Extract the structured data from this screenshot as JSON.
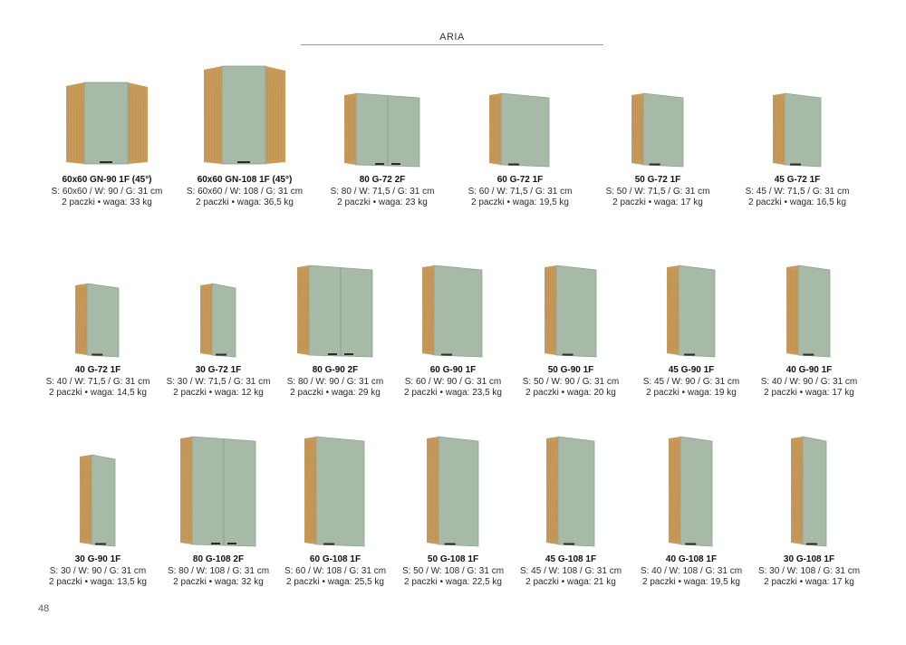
{
  "header": {
    "title": "ARIA"
  },
  "page_number": "48",
  "colors": {
    "oak": "#c79a5a",
    "oak_dark": "#a97c42",
    "front": "#a7baa8",
    "front_edge": "#8fa391",
    "handle": "#2a2a2a"
  },
  "rows": [
    {
      "items": [
        {
          "name": "60x60 GN-90 1F (45°)",
          "dims": "S: 60x60 / W: 90 / G: 31 cm",
          "pack": "2 paczki • waga: 33 kg",
          "type": "corner",
          "height_cm": 90,
          "doors": 1
        },
        {
          "name": "60x60 GN-108 1F (45°)",
          "dims": "S: 60x60 / W: 108 / G: 31 cm",
          "pack": "2 paczki • waga: 36,5 kg",
          "type": "corner",
          "height_cm": 108,
          "doors": 1
        },
        {
          "name": "80 G-72 2F",
          "dims": "S: 80 / W: 71,5 / G: 31 cm",
          "pack": "2 paczki • waga: 23 kg",
          "type": "flat",
          "width_cm": 80,
          "height_cm": 71.5,
          "doors": 2
        },
        {
          "name": "60 G-72 1F",
          "dims": "S: 60 / W: 71,5 / G: 31 cm",
          "pack": "2 paczki • waga: 19,5 kg",
          "type": "flat",
          "width_cm": 60,
          "height_cm": 71.5,
          "doors": 1
        },
        {
          "name": "50 G-72 1F",
          "dims": "S: 50 / W: 71,5 / G: 31 cm",
          "pack": "2 paczki • waga: 17 kg",
          "type": "flat",
          "width_cm": 50,
          "height_cm": 71.5,
          "doors": 1
        },
        {
          "name": "45 G-72 1F",
          "dims": "S: 45 / W: 71,5 / G: 31 cm",
          "pack": "2 paczki • waga: 16,5 kg",
          "type": "flat",
          "width_cm": 45,
          "height_cm": 71.5,
          "doors": 1
        }
      ]
    },
    {
      "items": [
        {
          "name": "40 G-72 1F",
          "dims": "S: 40 / W: 71,5 / G: 31 cm",
          "pack": "2 paczki • waga: 14,5 kg",
          "type": "flat",
          "width_cm": 40,
          "height_cm": 71.5,
          "doors": 1
        },
        {
          "name": "30 G-72 1F",
          "dims": "S: 30 / W: 71,5 / G: 31 cm",
          "pack": "2 paczki • waga: 12 kg",
          "type": "flat",
          "width_cm": 30,
          "height_cm": 71.5,
          "doors": 1
        },
        {
          "name": "80 G-90 2F",
          "dims": "S: 80 / W: 90 / G: 31 cm",
          "pack": "2 paczki • waga: 29 kg",
          "type": "flat",
          "width_cm": 80,
          "height_cm": 90,
          "doors": 2
        },
        {
          "name": "60 G-90 1F",
          "dims": "S: 60 / W: 90 / G: 31 cm",
          "pack": "2 paczki • waga: 23,5 kg",
          "type": "flat",
          "width_cm": 60,
          "height_cm": 90,
          "doors": 1
        },
        {
          "name": "50 G-90 1F",
          "dims": "S: 50 / W: 90 / G: 31 cm",
          "pack": "2 paczki • waga: 20 kg",
          "type": "flat",
          "width_cm": 50,
          "height_cm": 90,
          "doors": 1
        },
        {
          "name": "45 G-90 1F",
          "dims": "S: 45 / W: 90 / G: 31 cm",
          "pack": "2 paczki • waga: 19 kg",
          "type": "flat",
          "width_cm": 45,
          "height_cm": 90,
          "doors": 1
        },
        {
          "name": "40 G-90 1F",
          "dims": "S: 40 / W: 90 / G: 31 cm",
          "pack": "2 paczki • waga: 17 kg",
          "type": "flat",
          "width_cm": 40,
          "height_cm": 90,
          "doors": 1
        }
      ]
    },
    {
      "items": [
        {
          "name": "30 G-90 1F",
          "dims": "S: 30 / W: 90 / G: 31 cm",
          "pack": "2 paczki • waga: 13,5 kg",
          "type": "flat",
          "width_cm": 30,
          "height_cm": 90,
          "doors": 1
        },
        {
          "name": "80 G-108 2F",
          "dims": "S: 80 / W: 108 / G: 31 cm",
          "pack": "2 paczki • waga: 32 kg",
          "type": "flat",
          "width_cm": 80,
          "height_cm": 108,
          "doors": 2
        },
        {
          "name": "60 G-108 1F",
          "dims": "S: 60 / W: 108 / G: 31 cm",
          "pack": "2 paczki • waga: 25,5 kg",
          "type": "flat",
          "width_cm": 60,
          "height_cm": 108,
          "doors": 1
        },
        {
          "name": "50 G-108 1F",
          "dims": "S: 50 / W: 108 / G: 31 cm",
          "pack": "2 paczki • waga: 22,5 kg",
          "type": "flat",
          "width_cm": 50,
          "height_cm": 108,
          "doors": 1
        },
        {
          "name": "45 G-108 1F",
          "dims": "S: 45 / W: 108 / G: 31 cm",
          "pack": "2 paczki • waga: 21 kg",
          "type": "flat",
          "width_cm": 45,
          "height_cm": 108,
          "doors": 1
        },
        {
          "name": "40 G-108 1F",
          "dims": "S: 40 / W: 108 / G: 31 cm",
          "pack": "2 paczki • waga: 19,5 kg",
          "type": "flat",
          "width_cm": 40,
          "height_cm": 108,
          "doors": 1
        },
        {
          "name": "30 G-108 1F",
          "dims": "S: 30 / W: 108 / G: 31 cm",
          "pack": "2 paczki • waga: 17 kg",
          "type": "flat",
          "width_cm": 30,
          "height_cm": 108,
          "doors": 1
        }
      ]
    }
  ]
}
